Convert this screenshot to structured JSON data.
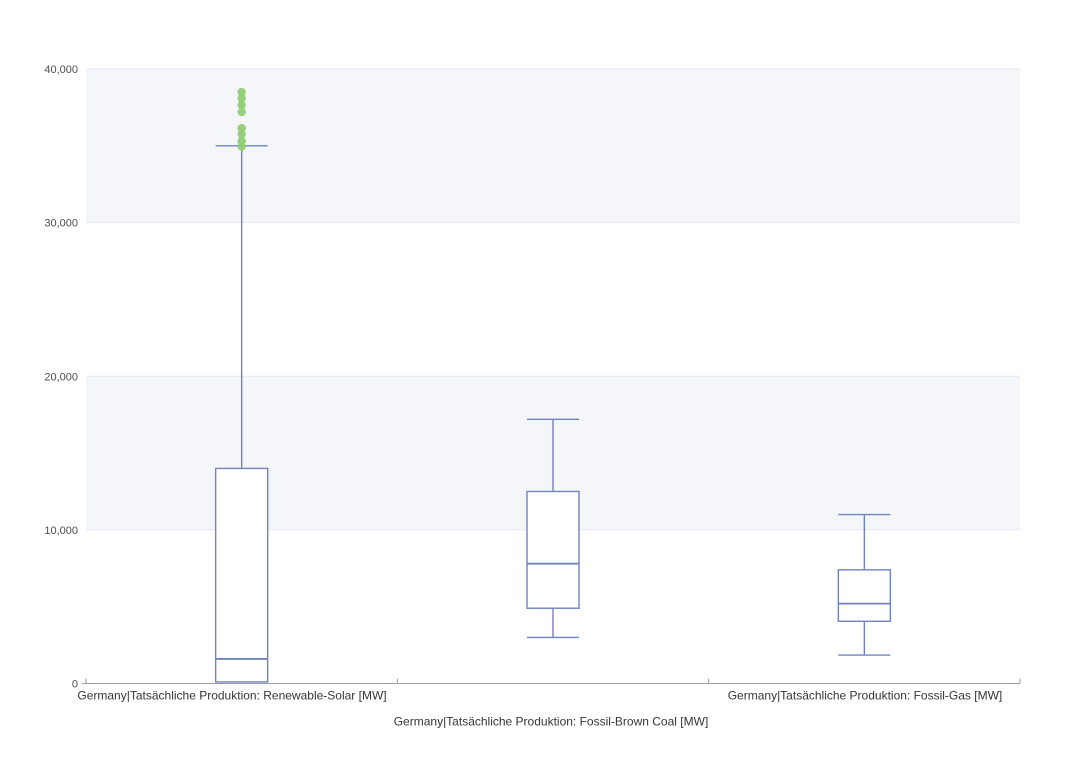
{
  "chart_data": {
    "type": "boxplot",
    "title": "",
    "legend": "none",
    "grid": "horizontal-bands",
    "categories": [
      "Germany|Tatsächliche Produktion: Renewable-Solar [MW]",
      "Germany|Tatsächliche Produktion: Fossil-Brown Coal [MW]",
      "Germany|Tatsächliche Produktion: Fossil-Gas [MW]"
    ],
    "boxes": [
      {
        "category": "Germany|Tatsächliche Produktion: Renewable-Solar [MW]",
        "min": 100,
        "q1": 100,
        "median": 1600,
        "q3": 14000,
        "max": 35000,
        "outliers": [
          34950,
          35300,
          35750,
          36150,
          37200,
          37650,
          38100,
          38500
        ]
      },
      {
        "category": "Germany|Tatsächliche Produktion: Fossil-Brown Coal [MW]",
        "min": 3000,
        "q1": 4900,
        "median": 7800,
        "q3": 12500,
        "max": 17200,
        "outliers": []
      },
      {
        "category": "Germany|Tatsächliche Produktion: Fossil-Gas [MW]",
        "min": 1850,
        "q1": 4050,
        "median": 5200,
        "q3": 7400,
        "max": 11000,
        "outliers": []
      }
    ],
    "yAxis": {
      "min": 0,
      "max": 40000,
      "tick_interval": 10000,
      "ticks": [
        0,
        10000,
        20000,
        30000,
        40000
      ],
      "tick_labels": [
        "0",
        "10,000",
        "20,000",
        "30,000",
        "40,000"
      ]
    },
    "band_intervals": [
      [
        30000,
        40000
      ],
      [
        10000,
        20000
      ]
    ],
    "colors": {
      "box_stroke": "#7183bf",
      "box_fill": "#ffffff",
      "outlier_fill": "#91cc75",
      "band_fill": "#f4f6fa",
      "grid_line": "#e4e8f2",
      "axis_line": "#9b9ea3",
      "y_label_text": "#4d4d4d",
      "x_label_text": "#363636"
    }
  }
}
